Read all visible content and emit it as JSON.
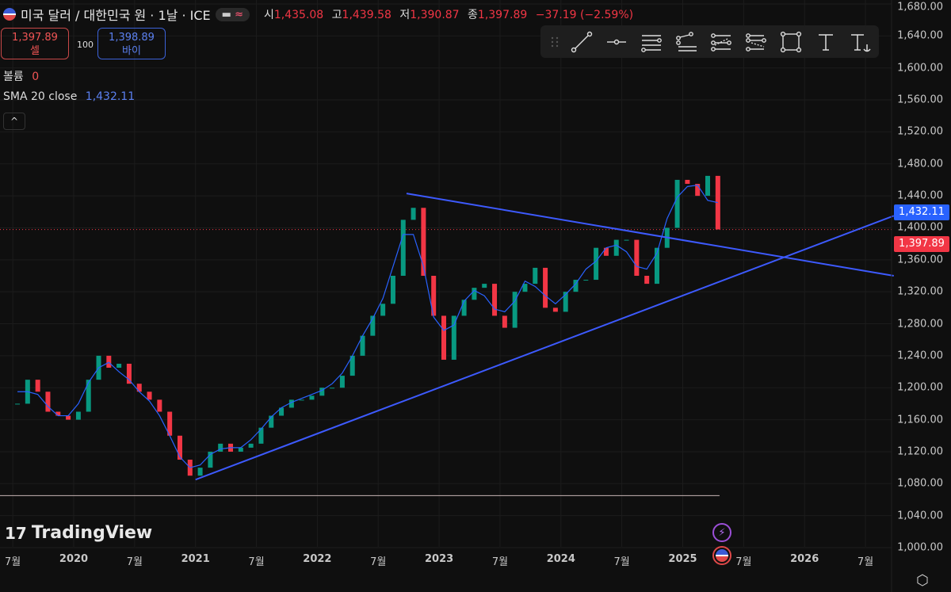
{
  "header": {
    "symbol": "미국 달러 / 대한민국 원 · 1날 · ICE",
    "toggle_icon": "≈",
    "open_label": "시",
    "open": "1,435.08",
    "high_label": "고",
    "high": "1,439.58",
    "low_label": "저",
    "low": "1,390.87",
    "close_label": "종",
    "close": "1,397.89",
    "change": "−37.19 (−2.59%)"
  },
  "trade": {
    "sell_price": "1,397.89",
    "sell_label": "셀",
    "quantity": "100",
    "buy_price": "1,398.89",
    "buy_label": "바이"
  },
  "legend": {
    "volume_label": "볼륨",
    "volume_value": "0",
    "sma_label": "SMA 20 close",
    "sma_value": "1,432.11",
    "collapse": "^"
  },
  "toolbar": {
    "tools": [
      "drag-handle",
      "trend-line",
      "horizontal-ray",
      "parallel-channel",
      "pitchfork",
      "fib-retracement",
      "fib-extension",
      "rectangle",
      "text",
      "anchored-text"
    ]
  },
  "price_labels": {
    "sma": "1,432.11",
    "last": "1,397.89",
    "sma_color": "#2962ff",
    "last_color": "#f23645"
  },
  "logo": "TradingView",
  "chart_data": {
    "type": "candlestick",
    "title": "미국 달러 / 대한민국 원 · 1날 · ICE",
    "y_ticks": [
      "1,680.00",
      "1,640.00",
      "1,600.00",
      "1,560.00",
      "1,520.00",
      "1,480.00",
      "1,440.00",
      "1,400.00",
      "1,360.00",
      "1,320.00",
      "1,280.00",
      "1,240.00",
      "1,200.00",
      "1,160.00",
      "1,120.00",
      "1,080.00",
      "1,040.00",
      "1,000.00"
    ],
    "ylim": [
      1000,
      1680
    ],
    "x_ticks": [
      {
        "label": "7월",
        "date": "2019-07"
      },
      {
        "label": "2020",
        "date": "2020-01",
        "bold": true
      },
      {
        "label": "7월",
        "date": "2020-07"
      },
      {
        "label": "2021",
        "date": "2021-01",
        "bold": true
      },
      {
        "label": "7월",
        "date": "2021-07"
      },
      {
        "label": "2022",
        "date": "2022-01",
        "bold": true
      },
      {
        "label": "7월",
        "date": "2022-07"
      },
      {
        "label": "2023",
        "date": "2023-01",
        "bold": true
      },
      {
        "label": "7월",
        "date": "2023-07"
      },
      {
        "label": "2024",
        "date": "2024-01",
        "bold": true
      },
      {
        "label": "7월",
        "date": "2024-07"
      },
      {
        "label": "2025",
        "date": "2025-01",
        "bold": true
      },
      {
        "label": "7월",
        "date": "2025-07"
      },
      {
        "label": "2026",
        "date": "2026-01",
        "bold": true
      },
      {
        "label": "7월",
        "date": "2026-07"
      }
    ],
    "dates": [
      "2019-07",
      "2019-08",
      "2019-09",
      "2019-10",
      "2019-11",
      "2019-12",
      "2020-01",
      "2020-02",
      "2020-03",
      "2020-04",
      "2020-05",
      "2020-06",
      "2020-07",
      "2020-08",
      "2020-09",
      "2020-10",
      "2020-11",
      "2020-12",
      "2021-01",
      "2021-02",
      "2021-03",
      "2021-04",
      "2021-05",
      "2021-06",
      "2021-07",
      "2021-08",
      "2021-09",
      "2021-10",
      "2021-11",
      "2021-12",
      "2022-01",
      "2022-02",
      "2022-03",
      "2022-04",
      "2022-05",
      "2022-06",
      "2022-07",
      "2022-08",
      "2022-09",
      "2022-10",
      "2022-11",
      "2022-12",
      "2023-01",
      "2023-02",
      "2023-03",
      "2023-04",
      "2023-05",
      "2023-06",
      "2023-07",
      "2023-08",
      "2023-09",
      "2023-10",
      "2023-11",
      "2023-12",
      "2024-01",
      "2024-02",
      "2024-03",
      "2024-04",
      "2024-05",
      "2024-06",
      "2024-07",
      "2024-08",
      "2024-09",
      "2024-10",
      "2024-11",
      "2024-12",
      "2025-01",
      "2025-02",
      "2025-03",
      "2025-04"
    ],
    "close": [
      1180,
      1210,
      1195,
      1170,
      1165,
      1160,
      1170,
      1210,
      1240,
      1225,
      1230,
      1205,
      1195,
      1185,
      1170,
      1140,
      1110,
      1090,
      1100,
      1120,
      1130,
      1120,
      1125,
      1130,
      1150,
      1165,
      1175,
      1185,
      1185,
      1190,
      1200,
      1200,
      1215,
      1240,
      1265,
      1290,
      1305,
      1340,
      1410,
      1425,
      1340,
      1290,
      1235,
      1290,
      1310,
      1325,
      1330,
      1290,
      1275,
      1320,
      1330,
      1350,
      1300,
      1295,
      1320,
      1335,
      1335,
      1375,
      1365,
      1385,
      1385,
      1340,
      1330,
      1375,
      1400,
      1460,
      1455,
      1440,
      1465,
      1398
    ],
    "series_colors": {
      "up": "#089981",
      "down": "#f23645",
      "sma": "#2962ff"
    },
    "trend_lines": [
      {
        "from": [
          "2021-01-01",
          1085
        ],
        "to": [
          "2026-09-25",
          1415
        ],
        "color": "#3d5afe"
      },
      {
        "from": [
          "2022-09-25",
          1443
        ],
        "to": [
          "2026-09-25",
          1340
        ],
        "color": "#3d5afe"
      }
    ],
    "horizontal_line": {
      "value": 1065,
      "to": "2025-04-20",
      "color": "#c8b4b4"
    },
    "last_price_line": 1397.89
  }
}
